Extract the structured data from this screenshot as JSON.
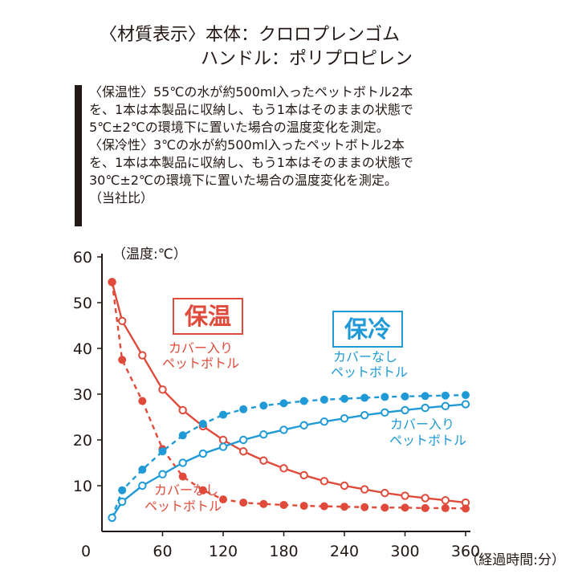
{
  "material": {
    "line1": "〈材質表示〉本体：クロロプレンゴム",
    "line2": "ハンドル：ポリプロピレン"
  },
  "description": [
    "〈保温性〉55℃の水が約500ml入ったペットボトル2本",
    "を、1本は本製品に収納し、もう1本はそのままの状態で",
    "5℃±2℃の環境下に置いた場合の温度変化を測定。",
    "〈保冷性〉3℃の水が約500ml入ったペットボトル2本",
    "を、1本は本製品に収納し、もう1本はそのままの状態で",
    "30℃±2℃の環境下に置いた場合の温度変化を測定。",
    "（当社比）"
  ],
  "chart_data": {
    "type": "line",
    "ylabel": "（温度:℃）",
    "xlabel": "（経過時間:分）",
    "xlim": [
      0,
      360
    ],
    "ylim": [
      0,
      60
    ],
    "xticks": [
      0,
      60,
      120,
      180,
      240,
      300,
      360
    ],
    "yticks": [
      10,
      20,
      30,
      40,
      50,
      60
    ],
    "colors": {
      "warm": "#e04a3a",
      "cool": "#1f9ad6",
      "axis": "#231815"
    },
    "groups": [
      {
        "name": "保温",
        "series": [
          "warm_cover",
          "warm_nocover"
        ]
      },
      {
        "name": "保冷",
        "series": [
          "cool_nocover",
          "cool_cover"
        ]
      }
    ],
    "series": [
      {
        "id": "warm_cover",
        "name": "カバー入り ペットボトル",
        "label_lines": [
          "カバー入り",
          "ペットボトル"
        ],
        "group": "保温",
        "color_key": "warm",
        "dashed": false,
        "marker": "open",
        "x": [
          10,
          20,
          40,
          60,
          80,
          100,
          120,
          140,
          160,
          180,
          200,
          220,
          240,
          260,
          280,
          300,
          320,
          340,
          360
        ],
        "values": [
          54.5,
          46.0,
          38.5,
          31.0,
          26.5,
          23.0,
          20.0,
          17.5,
          15.5,
          13.8,
          12.3,
          11.0,
          10.0,
          9.2,
          8.4,
          7.8,
          7.3,
          6.8,
          6.3
        ]
      },
      {
        "id": "warm_nocover",
        "name": "カバーなし ペットボトル",
        "label_lines": [
          "カバーなし",
          "ペットボトル"
        ],
        "group": "保温",
        "color_key": "warm",
        "dashed": true,
        "marker": "filled",
        "x": [
          10,
          20,
          40,
          60,
          80,
          100,
          120,
          140,
          160,
          180,
          200,
          220,
          240,
          260,
          280,
          300,
          320,
          340,
          360
        ],
        "values": [
          54.5,
          37.5,
          28.5,
          18.0,
          12.0,
          9.0,
          7.0,
          6.3,
          6.0,
          5.8,
          5.6,
          5.5,
          5.4,
          5.3,
          5.2,
          5.2,
          5.1,
          5.1,
          5.0
        ]
      },
      {
        "id": "cool_nocover",
        "name": "カバーなし ペットボトル",
        "label_lines": [
          "カバーなし",
          "ペットボトル"
        ],
        "group": "保冷",
        "color_key": "cool",
        "dashed": true,
        "marker": "filled",
        "x": [
          10,
          20,
          40,
          60,
          80,
          100,
          120,
          140,
          160,
          180,
          200,
          220,
          240,
          260,
          280,
          300,
          320,
          340,
          360
        ],
        "values": [
          3.0,
          9.0,
          13.5,
          17.5,
          21.0,
          23.5,
          25.5,
          26.7,
          27.5,
          28.0,
          28.5,
          28.8,
          29.0,
          29.2,
          29.4,
          29.5,
          29.6,
          29.7,
          29.8
        ]
      },
      {
        "id": "cool_cover",
        "name": "カバー入り ペットボトル",
        "label_lines": [
          "カバー入り",
          "ペットボトル"
        ],
        "group": "保冷",
        "color_key": "cool",
        "dashed": false,
        "marker": "open",
        "x": [
          10,
          20,
          40,
          60,
          80,
          100,
          120,
          140,
          160,
          180,
          200,
          220,
          240,
          260,
          280,
          300,
          320,
          340,
          360
        ],
        "values": [
          3.0,
          6.5,
          10.0,
          12.5,
          15.0,
          17.0,
          18.5,
          20.0,
          21.2,
          22.2,
          23.2,
          24.0,
          24.7,
          25.4,
          26.0,
          26.5,
          27.0,
          27.4,
          27.8
        ]
      }
    ]
  }
}
